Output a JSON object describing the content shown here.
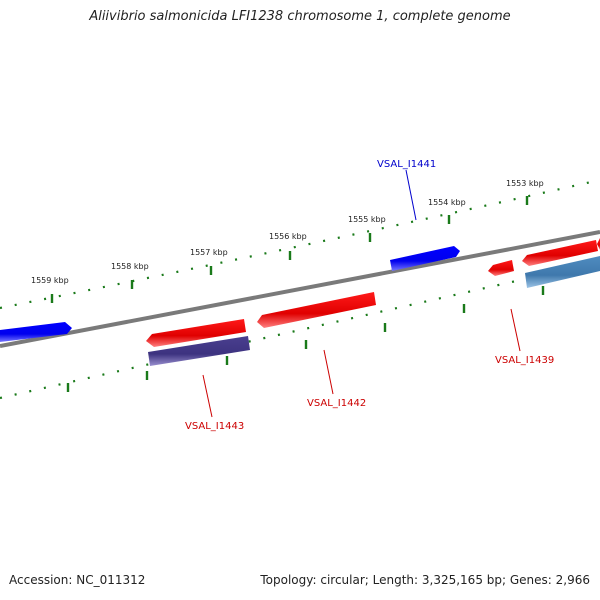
{
  "title": "Aliivibrio salmonicida LFI1238 chromosome 1, complete genome",
  "footer": {
    "accession": "Accession: NC_011312",
    "summary": "Topology: circular; Length: 3,325,165 bp; Genes: 2,966"
  },
  "ruler_labels": [
    "1553 kbp",
    "1554 kbp",
    "1555 kbp",
    "1556 kbp",
    "1557 kbp",
    "1558 kbp",
    "1559 kbp"
  ],
  "gene_labels": [
    {
      "id": "VSAL_I1441",
      "color": "#0000cc"
    },
    {
      "id": "VSAL_I1439",
      "color": "#cc0000"
    },
    {
      "id": "VSAL_I1442",
      "color": "#cc0000"
    },
    {
      "id": "VSAL_I1443",
      "color": "#cc0000"
    }
  ],
  "colors": {
    "forward_gene": "#0000ff",
    "reverse_gene": "#ee0000",
    "rna_gene": "#483d8b",
    "other_gene": "#4682b4",
    "backbone": "#808080",
    "ticks": "#1a7a1a"
  }
}
